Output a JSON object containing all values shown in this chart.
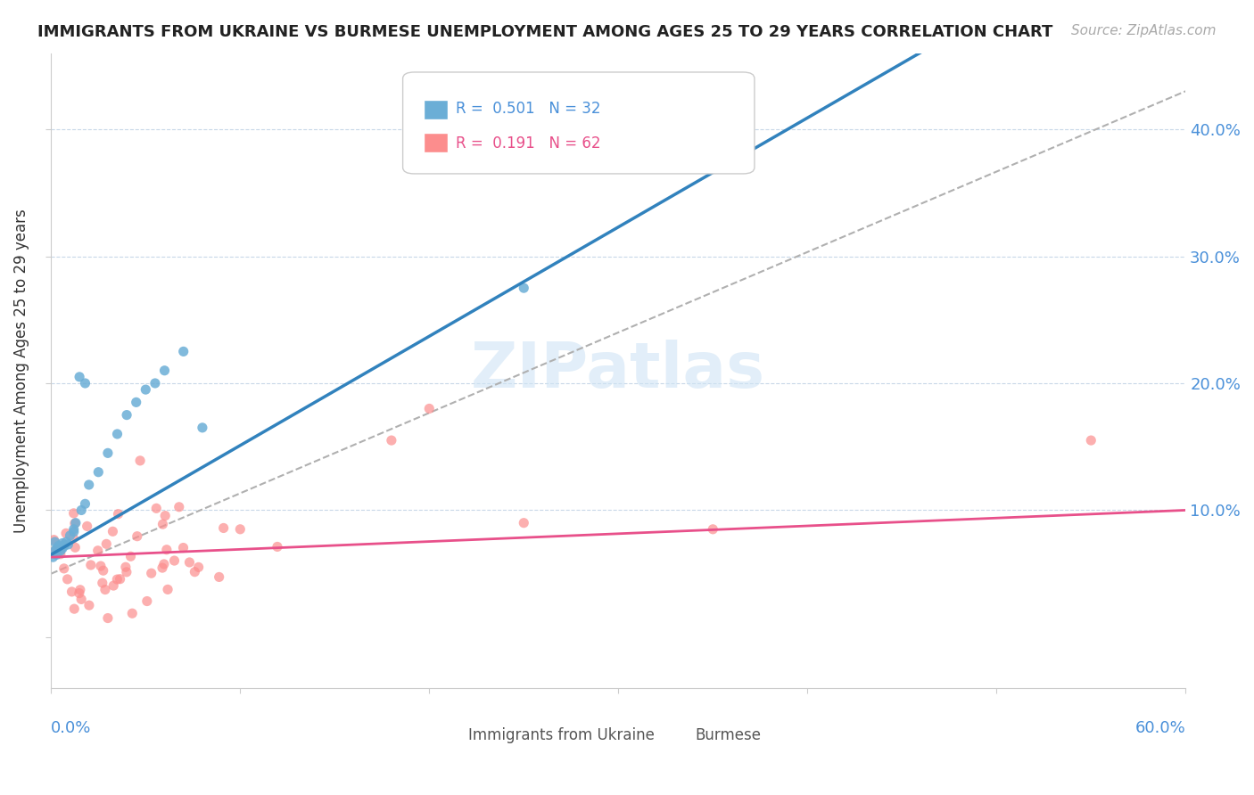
{
  "title": "IMMIGRANTS FROM UKRAINE VS BURMESE UNEMPLOYMENT AMONG AGES 25 TO 29 YEARS CORRELATION CHART",
  "source": "Source: ZipAtlas.com",
  "ylabel": "Unemployment Among Ages 25 to 29 years",
  "xmin": 0.0,
  "xmax": 0.6,
  "ymin": -0.04,
  "ymax": 0.46,
  "blue_R": 0.501,
  "blue_N": 32,
  "pink_R": 0.191,
  "pink_N": 62,
  "blue_color": "#6baed6",
  "pink_color": "#fc8d8d",
  "blue_line_color": "#3182bd",
  "pink_line_color": "#e8508a",
  "trend_line_color": "#b0b0b0",
  "legend_label_blue": "Immigrants from Ukraine",
  "legend_label_pink": "Burmese"
}
